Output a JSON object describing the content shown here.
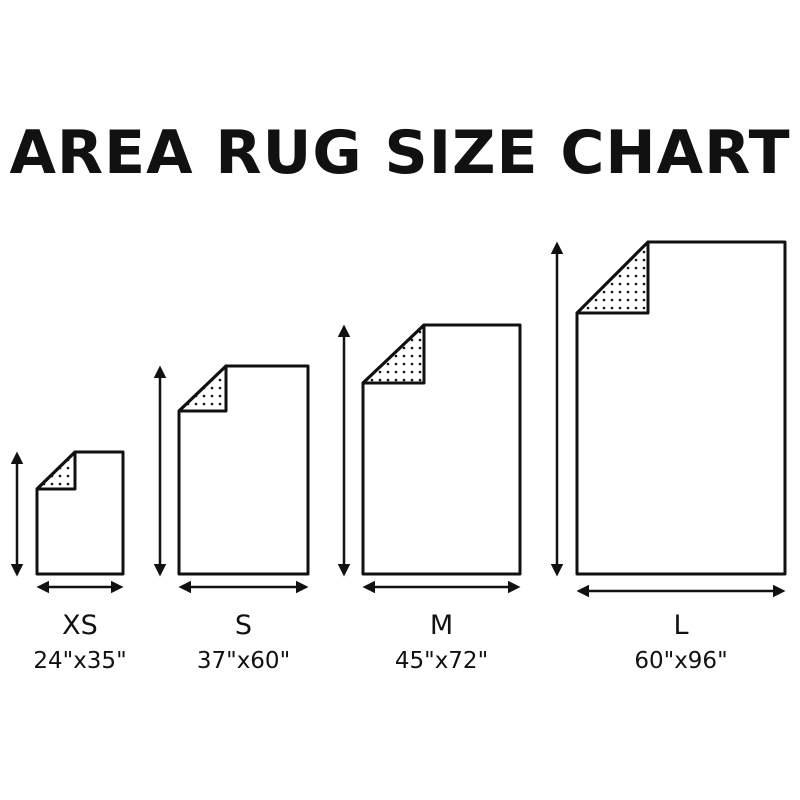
{
  "title": "AREA RUG SIZE CHART",
  "sizes": [
    {
      "label": "XS",
      "dimensions": "24\"x35\""
    },
    {
      "label": "S",
      "dimensions": "37\"x60\""
    },
    {
      "label": "M",
      "dimensions": "45\"x72\""
    },
    {
      "label": "L",
      "dimensions": "60\"x96\""
    }
  ],
  "colors": {
    "stroke": "#111111",
    "background": "#ffffff"
  }
}
